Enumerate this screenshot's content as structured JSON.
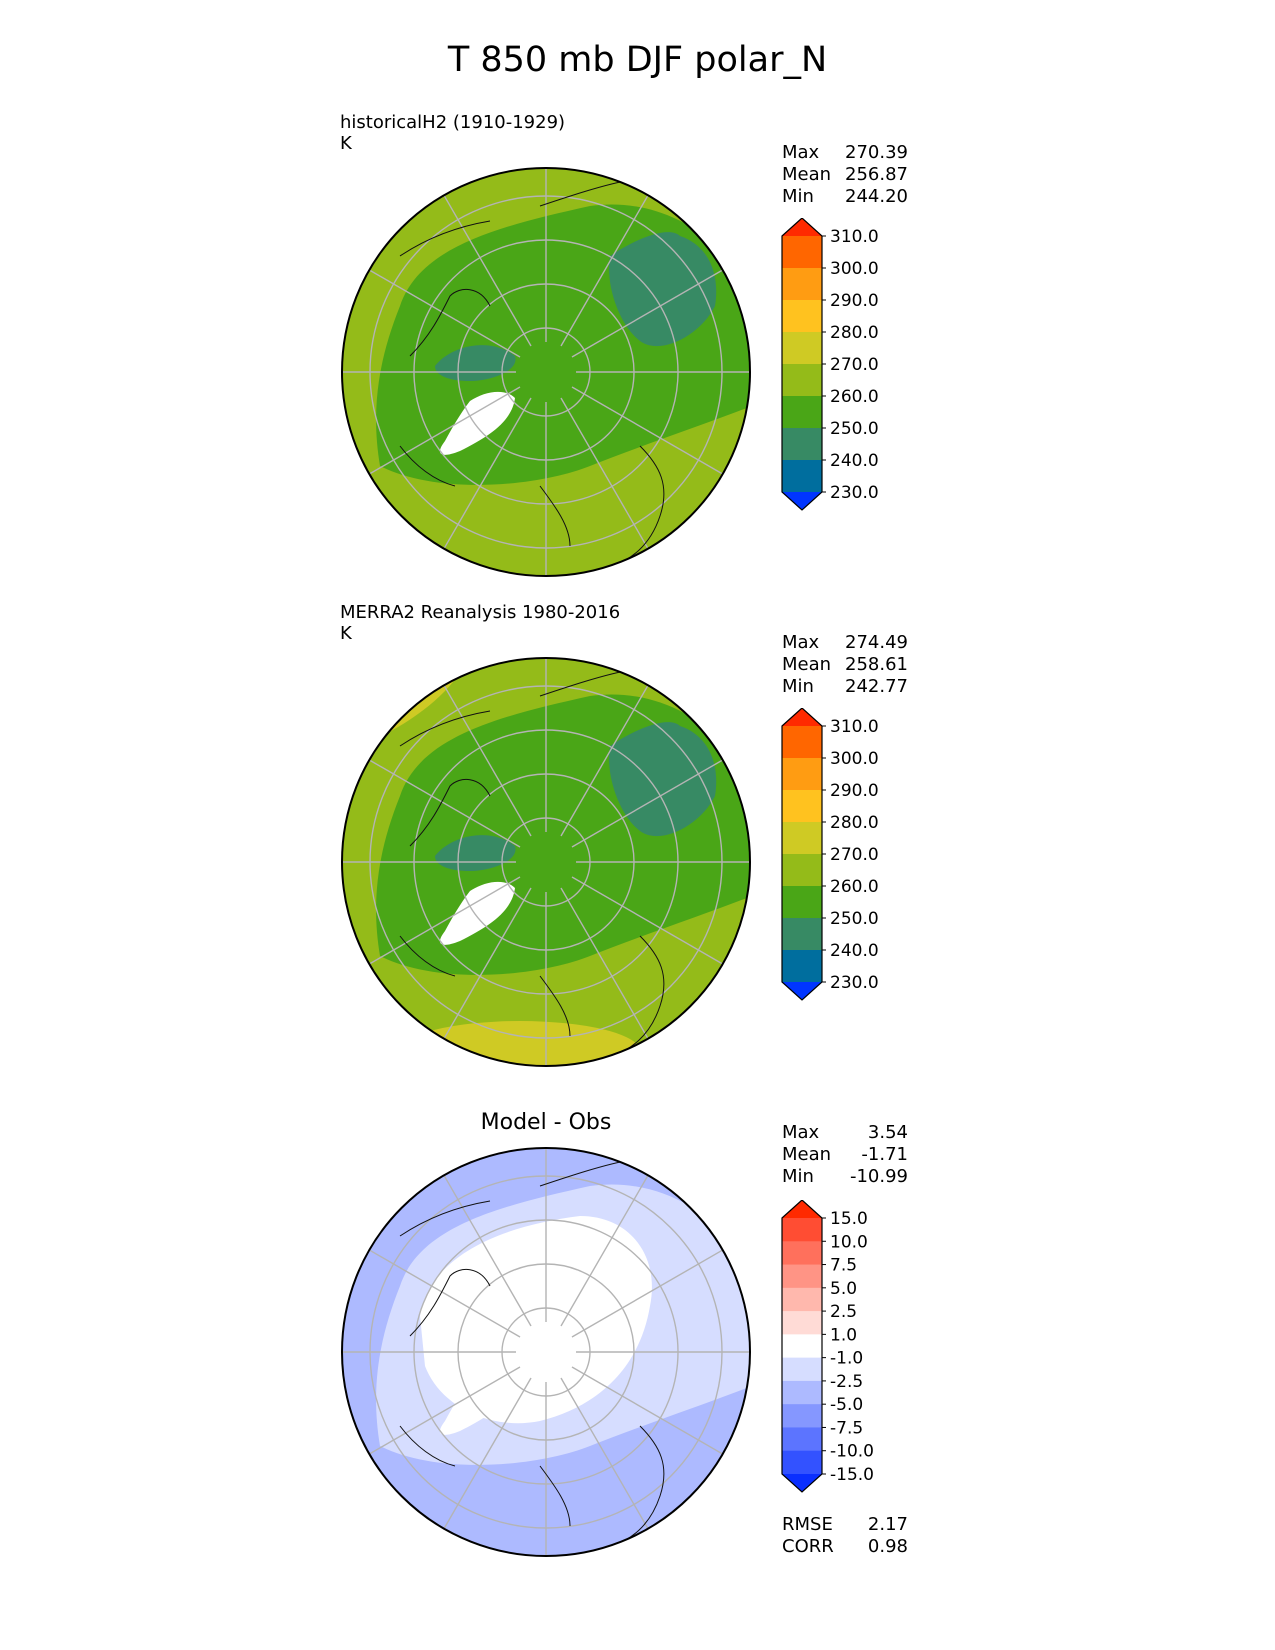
{
  "figure": {
    "title": "T 850 mb DJF polar_N"
  },
  "panels": [
    {
      "id": "test",
      "title": "historicalH2 (1910-1929)",
      "units": "K",
      "stats": [
        {
          "label": "Max",
          "value": "270.39"
        },
        {
          "label": "Mean",
          "value": "256.87"
        },
        {
          "label": "Min",
          "value": "244.20"
        }
      ],
      "colorbar": {
        "ticks": [
          "310.0",
          "300.0",
          "290.0",
          "280.0",
          "270.0",
          "260.0",
          "250.0",
          "240.0",
          "230.0"
        ],
        "colors_top_to_bottom": [
          "#ff2a00",
          "#ff6600",
          "#ff9c12",
          "#ffc21f",
          "#cfca24",
          "#94bb19",
          "#4aa617",
          "#378a64",
          "#006e9e",
          "#0035ff"
        ]
      },
      "fill": {
        "outer": "#94bb19",
        "mid": "#4aa617",
        "cold": "#378a64"
      }
    },
    {
      "id": "ref",
      "title": "MERRA2 Reanalysis 1980-2016",
      "units": "K",
      "stats": [
        {
          "label": "Max",
          "value": "274.49"
        },
        {
          "label": "Mean",
          "value": "258.61"
        },
        {
          "label": "Min",
          "value": "242.77"
        }
      ],
      "colorbar": {
        "ticks": [
          "310.0",
          "300.0",
          "290.0",
          "280.0",
          "270.0",
          "260.0",
          "250.0",
          "240.0",
          "230.0"
        ],
        "colors_top_to_bottom": [
          "#ff2a00",
          "#ff6600",
          "#ff9c12",
          "#ffc21f",
          "#cfca24",
          "#94bb19",
          "#4aa617",
          "#378a64",
          "#006e9e",
          "#0035ff"
        ]
      },
      "fill": {
        "outer": "#94bb19",
        "mid": "#4aa617",
        "cold": "#378a64",
        "warm": "#cfca24"
      }
    },
    {
      "id": "diff",
      "title": "Model - Obs",
      "units": "",
      "stats": [
        {
          "label": "Max",
          "value": "3.54"
        },
        {
          "label": "Mean",
          "value": "-1.71"
        },
        {
          "label": "Min",
          "value": "-10.99"
        }
      ],
      "colorbar": {
        "ticks": [
          "15.0",
          "10.0",
          "7.5",
          "5.0",
          "2.5",
          "1.0",
          "-1.0",
          "-2.5",
          "-5.0",
          "-7.5",
          "-10.0",
          "-15.0"
        ],
        "colors_top_to_bottom": [
          "#ff2a00",
          "#ff4d33",
          "#ff705c",
          "#ff9485",
          "#ffb8ad",
          "#ffdbd6",
          "#ffffff",
          "#d6ddff",
          "#adbaff",
          "#8597ff",
          "#5c74ff",
          "#3352ff",
          "#0a2fff"
        ]
      },
      "fill": {
        "outer": "#adbaff",
        "mid": "#d6ddff",
        "inner": "#ffffff"
      },
      "extra_stats": [
        {
          "label": "RMSE",
          "value": "2.17"
        },
        {
          "label": "CORR",
          "value": "0.98"
        }
      ]
    }
  ]
}
